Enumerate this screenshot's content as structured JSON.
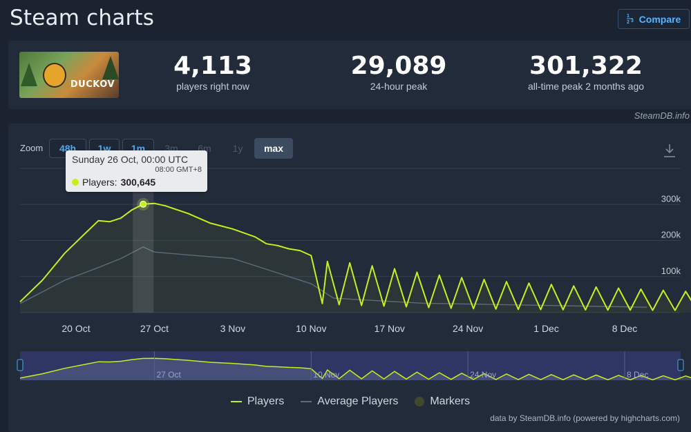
{
  "header": {
    "title": "Steam charts",
    "compare_label": "Compare",
    "compare_icon_text": "1/2 3"
  },
  "stats": {
    "game_logo_text": "DUCKOV",
    "current": {
      "value": "4,113",
      "label": "players right now"
    },
    "peak24": {
      "value": "29,089",
      "label": "24-hour peak"
    },
    "alltime": {
      "value": "301,322",
      "label": "all-time peak 2 months ago"
    }
  },
  "source_tag": "SteamDB.info",
  "zoom": {
    "label": "Zoom",
    "buttons": [
      "48h",
      "1w",
      "1m",
      "3m",
      "6m",
      "1y",
      "max"
    ],
    "active": "max"
  },
  "tooltip": {
    "date": "Sunday 26 Oct, 00:00 UTC",
    "local_time": "08:00 GMT+8",
    "series_label": "Players:",
    "series_value": "300,645"
  },
  "legend": {
    "players": "Players",
    "average": "Average Players",
    "markers": "Markers"
  },
  "credits": "data by SteamDB.info (powered by highcharts.com)",
  "colors": {
    "players": "#c6f01b",
    "average": "#5d6b7c",
    "grid": "#343f4f",
    "navigator_mask": "#3a3f86",
    "background": "#1b2330",
    "panel": "#222b3a"
  },
  "chart_data": {
    "type": "line",
    "x_axis": {
      "type": "date",
      "ticks": [
        "20 Oct",
        "27 Oct",
        "3 Nov",
        "10 Nov",
        "17 Nov",
        "24 Nov",
        "1 Dec",
        "8 Dec"
      ]
    },
    "y_axis": {
      "ticks": [
        "100k",
        "200k",
        "300k"
      ],
      "ylim": [
        0,
        400000
      ],
      "grid": true
    },
    "navigator_ticks": [
      "27 Oct",
      "10 Nov",
      "24 Nov",
      "8 Dec"
    ],
    "series": [
      {
        "name": "Players",
        "points": [
          [
            "2025-10-15",
            30000
          ],
          [
            "2025-10-17",
            90000
          ],
          [
            "2025-10-19",
            165000
          ],
          [
            "2025-10-21",
            225000
          ],
          [
            "2025-10-22",
            255000
          ],
          [
            "2025-10-23",
            252000
          ],
          [
            "2025-10-24",
            262000
          ],
          [
            "2025-10-25",
            285000
          ],
          [
            "2025-10-26",
            300645
          ],
          [
            "2025-10-27",
            303000
          ],
          [
            "2025-10-28",
            296000
          ],
          [
            "2025-10-30",
            275000
          ],
          [
            "2025-11-01",
            248000
          ],
          [
            "2025-11-03",
            232000
          ],
          [
            "2025-11-05",
            210000
          ],
          [
            "2025-11-06",
            191000
          ],
          [
            "2025-11-07",
            186000
          ],
          [
            "2025-11-08",
            177000
          ],
          [
            "2025-11-09",
            172000
          ],
          [
            "2025-11-10",
            158000
          ],
          [
            "2025-11-11",
            25000
          ]
        ],
        "daily_peaks": [
          142000,
          138000,
          130000,
          122000,
          112000,
          104000,
          97000,
          92000,
          86000,
          82000,
          78000,
          74000,
          71000,
          68000,
          65000,
          62000,
          59000,
          57000,
          55000,
          53000,
          51000,
          49000,
          47000,
          46000,
          45000,
          44000,
          43000,
          42000,
          41000,
          40000
        ],
        "daily_troughs": [
          22000,
          20000,
          18000,
          16000,
          14000,
          12000,
          11000,
          10000,
          9000,
          8500,
          8000,
          7500,
          7000,
          6800,
          6600,
          6400,
          6200,
          6000,
          5800,
          5600,
          5400,
          5200,
          5000,
          4900,
          4800,
          4700,
          4600,
          4500,
          4400,
          4300
        ]
      },
      {
        "name": "Average Players",
        "points": [
          [
            "2025-10-15",
            25000
          ],
          [
            "2025-10-19",
            90000
          ],
          [
            "2025-10-22",
            125000
          ],
          [
            "2025-10-24",
            150000
          ],
          [
            "2025-10-26",
            182000
          ],
          [
            "2025-10-27",
            168000
          ],
          [
            "2025-10-30",
            160000
          ],
          [
            "2025-11-03",
            150000
          ],
          [
            "2025-11-07",
            110000
          ],
          [
            "2025-11-10",
            80000
          ],
          [
            "2025-11-12",
            40000
          ],
          [
            "2025-11-20",
            26000
          ],
          [
            "2025-12-10",
            15000
          ]
        ]
      }
    ]
  }
}
